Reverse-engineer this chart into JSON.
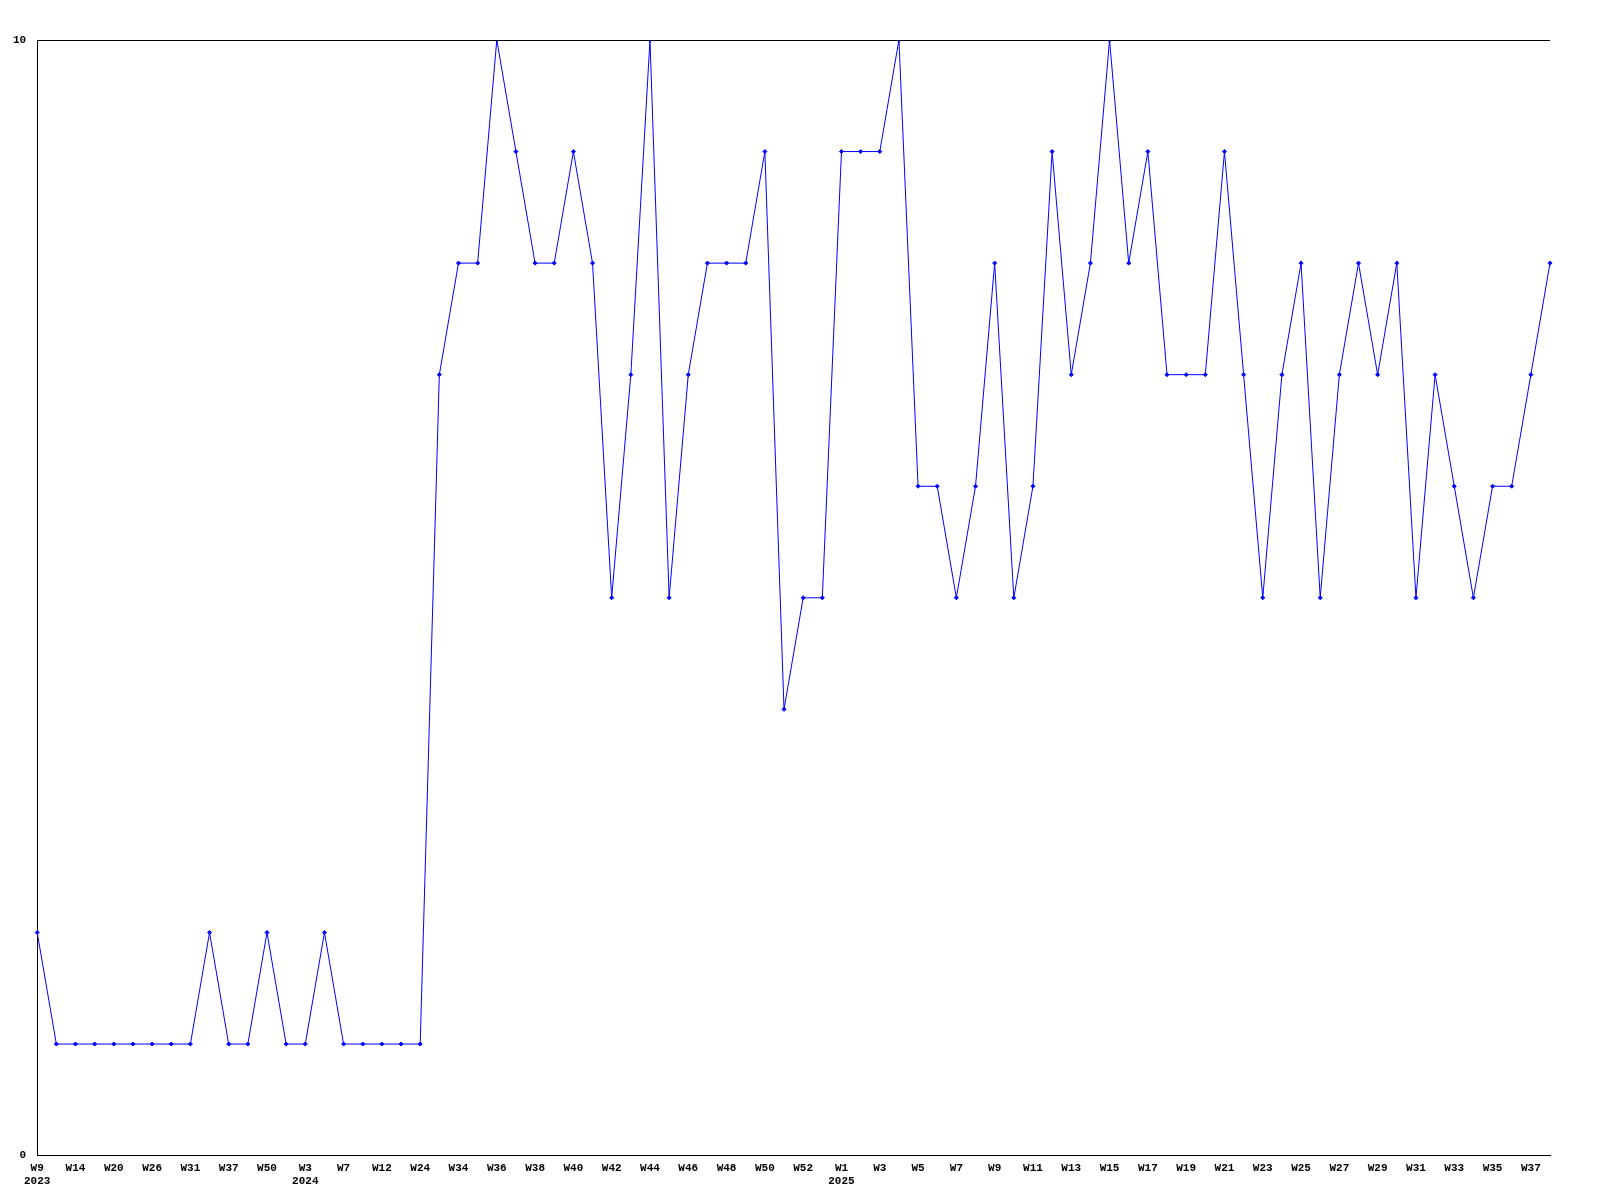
{
  "chart_data": {
    "type": "line",
    "categories": [
      "W9\n2023",
      null,
      "W14",
      null,
      "W20",
      null,
      "W26",
      null,
      "W31",
      null,
      "W37",
      null,
      "W50",
      null,
      "W3\n2024",
      null,
      "W7",
      null,
      "W12",
      null,
      "W24",
      null,
      "W34",
      null,
      "W36",
      null,
      "W38",
      null,
      "W40",
      null,
      "W42",
      null,
      "W44",
      null,
      "W46",
      null,
      "W48",
      null,
      "W50",
      null,
      "W52",
      null,
      "W1\n2025",
      null,
      "W3",
      null,
      "W5",
      null,
      "W7",
      null,
      "W9",
      null,
      "W11",
      null,
      "W13",
      null,
      "W15",
      null,
      "W17",
      null,
      "W19",
      null,
      "W21",
      null,
      "W23",
      null,
      "W25",
      null,
      "W27",
      null,
      "W29",
      null,
      "W31",
      null,
      "W33",
      null,
      "W35",
      null,
      "W37",
      null
    ],
    "series": [
      {
        "color": "#0000ff",
        "values": [
          2,
          1,
          1,
          1,
          1,
          1,
          1,
          1,
          1,
          2,
          1,
          1,
          2,
          1,
          1,
          2,
          1,
          1,
          1,
          1,
          1,
          7,
          8,
          8,
          10,
          9,
          8,
          8,
          9,
          8,
          5,
          7,
          10,
          5,
          7,
          8,
          8,
          8,
          9,
          4,
          5,
          5,
          9,
          9,
          9,
          10,
          6,
          6,
          5,
          6,
          8,
          5,
          6,
          9,
          7,
          8,
          10,
          8,
          9,
          7,
          7,
          7,
          9,
          7,
          5,
          7,
          8,
          5,
          7,
          8,
          7,
          8,
          5,
          7,
          6,
          5,
          6,
          6,
          7,
          8
        ]
      }
    ],
    "ylim": [
      0,
      10
    ],
    "yticks": [
      0,
      10
    ],
    "grid": false,
    "legend": false,
    "marker": "diamond",
    "line_style": "solid"
  }
}
